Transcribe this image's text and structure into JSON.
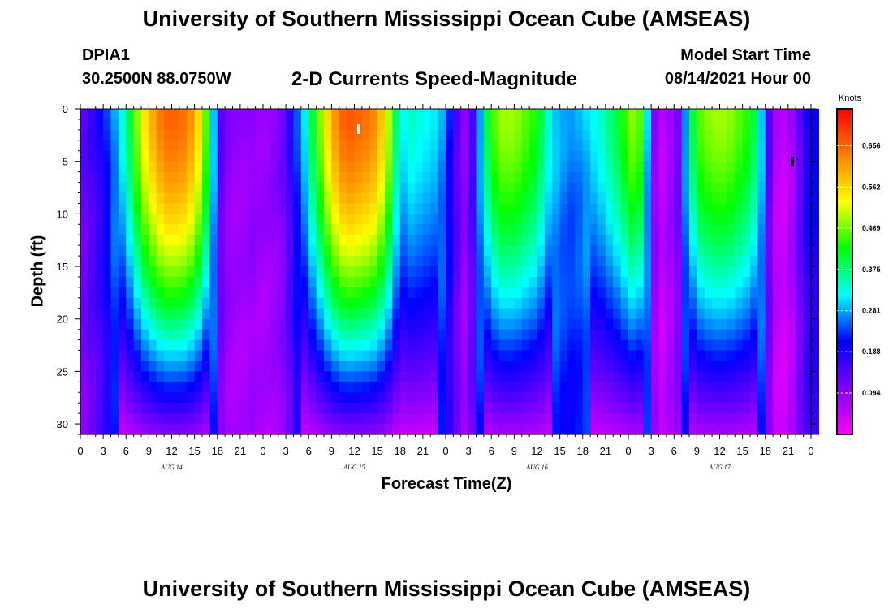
{
  "header": {
    "title": "University of Southern Mississippi Ocean Cube (AMSEAS)",
    "station_id": "DPIA1",
    "coordinates": "30.2500N  88.0750W",
    "plot_title": "2-D Currents Speed-Magnitude",
    "model_start_label": "Model Start Time",
    "model_start_value": "08/14/2021 Hour 00"
  },
  "footer": {
    "title": "University of Southern Mississippi Ocean Cube (AMSEAS)"
  },
  "chart_data": {
    "type": "heatmap",
    "xlabel": "Forecast Time(Z)",
    "ylabel": "Depth (ft)",
    "x_tick_labels": [
      "0",
      "3",
      "6",
      "9",
      "12",
      "15",
      "18",
      "21",
      "0",
      "3",
      "6",
      "9",
      "12",
      "15",
      "18",
      "21",
      "0",
      "3",
      "6",
      "9",
      "12",
      "15",
      "18",
      "21",
      "0",
      "3",
      "6",
      "9",
      "12",
      "15",
      "18",
      "21",
      "0"
    ],
    "day_labels": [
      "AUG 14",
      "AUG 15",
      "AUG 16",
      "AUG 17"
    ],
    "xlim_hours": [
      0,
      96
    ],
    "y_ticks": [
      0,
      5,
      10,
      15,
      20,
      25,
      30
    ],
    "y_tick_labels": [
      "0",
      "5",
      "10",
      "15",
      "20",
      "25",
      "30"
    ],
    "ylim_ft": [
      0,
      31
    ],
    "y_inverted": true,
    "colorbar": {
      "unit": "Knots",
      "tick_values": [
        0.094,
        0.188,
        0.281,
        0.375,
        0.469,
        0.562,
        0.656
      ],
      "tick_labels": [
        "0.094",
        "0.188",
        "0.281",
        "0.375",
        "0.469",
        "0.562",
        "0.656"
      ],
      "range": [
        0.0,
        0.74
      ],
      "colors": [
        "#ff00ff",
        "#8000ff",
        "#0000ff",
        "#00ffff",
        "#00ff00",
        "#ffff00",
        "#ff8000",
        "#ff0000"
      ]
    },
    "surface_speed_knots_by_hour": [
      0.14,
      0.16,
      0.19,
      0.23,
      0.28,
      0.33,
      0.4,
      0.48,
      0.55,
      0.6,
      0.64,
      0.66,
      0.66,
      0.65,
      0.62,
      0.56,
      0.46,
      0.3,
      0.14,
      0.1,
      0.09,
      0.09,
      0.1,
      0.09,
      0.09,
      0.1,
      0.12,
      0.17,
      0.24,
      0.31,
      0.4,
      0.48,
      0.56,
      0.62,
      0.66,
      0.67,
      0.66,
      0.65,
      0.63,
      0.58,
      0.5,
      0.38,
      0.32,
      0.34,
      0.33,
      0.32,
      0.31,
      0.28,
      0.22,
      0.15,
      0.1,
      0.16,
      0.29,
      0.4,
      0.46,
      0.49,
      0.49,
      0.48,
      0.46,
      0.44,
      0.4,
      0.34,
      0.3,
      0.28,
      0.27,
      0.28,
      0.3,
      0.32,
      0.34,
      0.37,
      0.4,
      0.44,
      0.48,
      0.46,
      0.3,
      0.1,
      0.06,
      0.09,
      0.12,
      0.28,
      0.4,
      0.46,
      0.48,
      0.49,
      0.49,
      0.48,
      0.46,
      0.44,
      0.4,
      0.3,
      0.14,
      0.06,
      0.05,
      0.08,
      0.14,
      0.2,
      0.22
    ]
  }
}
